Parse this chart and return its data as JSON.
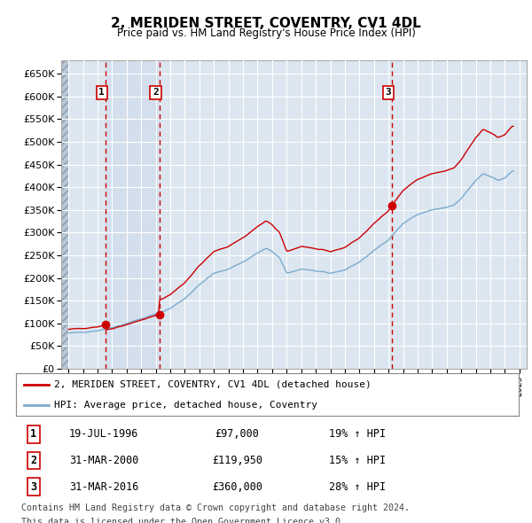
{
  "title": "2, MERIDEN STREET, COVENTRY, CV1 4DL",
  "subtitle": "Price paid vs. HM Land Registry's House Price Index (HPI)",
  "ylim": [
    0,
    680000
  ],
  "yticks": [
    0,
    50000,
    100000,
    150000,
    200000,
    250000,
    300000,
    350000,
    400000,
    450000,
    500000,
    550000,
    600000,
    650000
  ],
  "xlim_start": 1993.5,
  "xlim_end": 2025.5,
  "background_color": "#ffffff",
  "plot_bg_color": "#dce6f0",
  "grid_color": "#ffffff",
  "red_line_color": "#cc0000",
  "blue_line_color": "#7aabce",
  "sale_marker_color": "#cc0000",
  "vline_color": "#cc0000",
  "transactions": [
    {
      "num": 1,
      "year": 1996.54,
      "price": 97000,
      "date": "19-JUL-1996",
      "pct": "19%"
    },
    {
      "num": 2,
      "year": 2000.25,
      "price": 119950,
      "date": "31-MAR-2000",
      "pct": "15%"
    },
    {
      "num": 3,
      "year": 2016.25,
      "price": 360000,
      "date": "31-MAR-2016",
      "pct": "28%"
    }
  ],
  "legend_label_red": "2, MERIDEN STREET, COVENTRY, CV1 4DL (detached house)",
  "legend_label_blue": "HPI: Average price, detached house, Coventry",
  "footer_line1": "Contains HM Land Registry data © Crown copyright and database right 2024.",
  "footer_line2": "This data is licensed under the Open Government Licence v3.0."
}
